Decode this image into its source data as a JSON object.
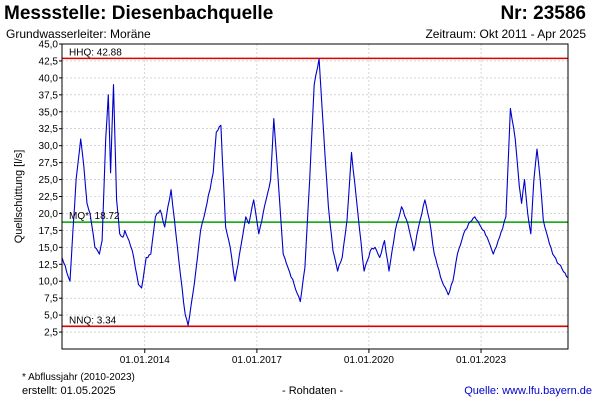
{
  "header": {
    "title": "Messstelle: Diesenbachquelle",
    "number": "Nr: 23586",
    "aquifer": "Grundwasserleiter:  Moräne",
    "period": "Zeitraum: Okt 2011 - Apr 2025"
  },
  "footer": {
    "footnote": "* Abflussjahr (2010-2023)",
    "created": "erstellt:  01.05.2025",
    "data_type": "- Rohdaten -",
    "source": "Quelle: www.lfu.bayern.de"
  },
  "colors": {
    "series": "#0000cc",
    "hhq": "#dd0000",
    "nnq": "#dd0000",
    "mq": "#00a000",
    "grid": "#bbbbbb"
  },
  "chart_data": {
    "type": "line",
    "ylabel": "Quellschüttung [l/s]",
    "ylim": [
      0,
      45
    ],
    "xlim": [
      "2011-10-15",
      "2025-04-30"
    ],
    "yticks": [
      2.5,
      5,
      7.5,
      10,
      12.5,
      15,
      17.5,
      20,
      22.5,
      25,
      27.5,
      30,
      32.5,
      35,
      37.5,
      40,
      42.5,
      45
    ],
    "ytick_labels": [
      "2,5",
      "5,0",
      "7,5",
      "10,0",
      "12,5",
      "15,0",
      "17,5",
      "20,0",
      "22,5",
      "25,0",
      "27,5",
      "30,0",
      "32,5",
      "35,0",
      "37,5",
      "40,0",
      "42,5",
      "45,0"
    ],
    "xticks": [
      "2014-01-01",
      "2017-01-01",
      "2020-01-01",
      "2023-01-01"
    ],
    "xtick_labels": [
      "01.01.2014",
      "01.01.2017",
      "01.01.2020",
      "01.01.2023"
    ],
    "grid": true,
    "reference_lines": [
      {
        "key": "hhq",
        "label": "HHQ: 42.88",
        "value": 42.88
      },
      {
        "key": "mq",
        "label": "MQ*: 18.72",
        "value": 18.72
      },
      {
        "key": "nnq",
        "label": "NNQ: 3.34",
        "value": 3.34
      }
    ],
    "series": [
      {
        "x": [
          "2011-10-15",
          "2012-01-01",
          "2012-03-01",
          "2012-04-15",
          "2012-05-15",
          "2012-06-15",
          "2012-07-15",
          "2012-09-01",
          "2012-10-15",
          "2012-11-10",
          "2012-12-15",
          "2013-01-10",
          "2013-02-01",
          "2013-03-01",
          "2013-04-01",
          "2013-05-01",
          "2013-06-01",
          "2013-06-20",
          "2013-07-15",
          "2013-09-01",
          "2013-11-01",
          "2013-12-01",
          "2014-01-15",
          "2014-03-01",
          "2014-04-15",
          "2014-06-01",
          "2014-07-15",
          "2014-08-15",
          "2014-09-15",
          "2014-11-01",
          "2014-12-15",
          "2015-02-01",
          "2015-03-01",
          "2015-04-15",
          "2015-05-15",
          "2015-07-01",
          "2015-09-01",
          "2015-11-01",
          "2015-12-01",
          "2016-01-15",
          "2016-03-01",
          "2016-04-15",
          "2016-06-01",
          "2016-07-15",
          "2016-09-15",
          "2016-10-15",
          "2016-12-01",
          "2017-01-20",
          "2017-04-01",
          "2017-05-15",
          "2017-06-15",
          "2017-08-01",
          "2017-09-15",
          "2017-11-01",
          "2018-01-01",
          "2018-03-01",
          "2018-04-15",
          "2018-06-01",
          "2018-07-15",
          "2018-09-01",
          "2018-10-15",
          "2018-12-01",
          "2019-01-15",
          "2019-03-01",
          "2019-04-15",
          "2019-06-01",
          "2019-07-15",
          "2019-09-15",
          "2019-11-15",
          "2020-01-15",
          "2020-03-01",
          "2020-04-15",
          "2020-06-01",
          "2020-07-15",
          "2020-09-15",
          "2020-11-15",
          "2021-01-15",
          "2021-03-15",
          "2021-05-15",
          "2021-07-01",
          "2021-08-15",
          "2021-10-01",
          "2021-12-15",
          "2022-02-15",
          "2022-04-01",
          "2022-05-15",
          "2022-07-15",
          "2022-09-01",
          "2022-11-01",
          "2023-01-01",
          "2023-03-01",
          "2023-05-01",
          "2023-07-01",
          "2023-09-01",
          "2023-10-15",
          "2023-12-01",
          "2024-01-10",
          "2024-02-01",
          "2024-03-01",
          "2024-04-01",
          "2024-05-01",
          "2024-06-01",
          "2024-07-01",
          "2024-08-01",
          "2024-09-01",
          "2024-10-15",
          "2024-12-01",
          "2025-02-01",
          "2025-04-30"
        ],
        "y": [
          13.5,
          10.0,
          25.0,
          31.0,
          27.0,
          21.5,
          20.0,
          15.0,
          14.0,
          16.0,
          31.0,
          37.5,
          26.0,
          39.0,
          22.0,
          17.0,
          16.5,
          17.5,
          16.5,
          14.5,
          9.5,
          9.0,
          13.5,
          14.0,
          19.5,
          20.5,
          18.0,
          21.0,
          23.5,
          17.0,
          11.0,
          5.0,
          3.5,
          8.0,
          11.5,
          17.5,
          21.5,
          26.0,
          32.0,
          33.0,
          18.0,
          15.0,
          10.0,
          14.0,
          19.5,
          18.5,
          22.0,
          17.0,
          22.0,
          25.0,
          34.0,
          24.0,
          14.0,
          12.0,
          9.5,
          7.0,
          12.0,
          25.0,
          39.0,
          42.8,
          32.0,
          21.0,
          14.5,
          11.5,
          13.5,
          19.0,
          29.0,
          20.0,
          11.5,
          14.5,
          15.0,
          13.5,
          16.0,
          11.5,
          17.5,
          21.0,
          18.5,
          14.5,
          19.0,
          22.0,
          19.0,
          14.0,
          10.0,
          8.0,
          10.0,
          14.0,
          17.0,
          18.5,
          19.5,
          18.0,
          16.5,
          14.0,
          16.5,
          19.5,
          35.5,
          31.0,
          24.0,
          21.5,
          25.0,
          20.0,
          17.0,
          25.0,
          29.5,
          25.0,
          19.0,
          16.5,
          14.0,
          12.5,
          10.5
        ]
      }
    ]
  }
}
